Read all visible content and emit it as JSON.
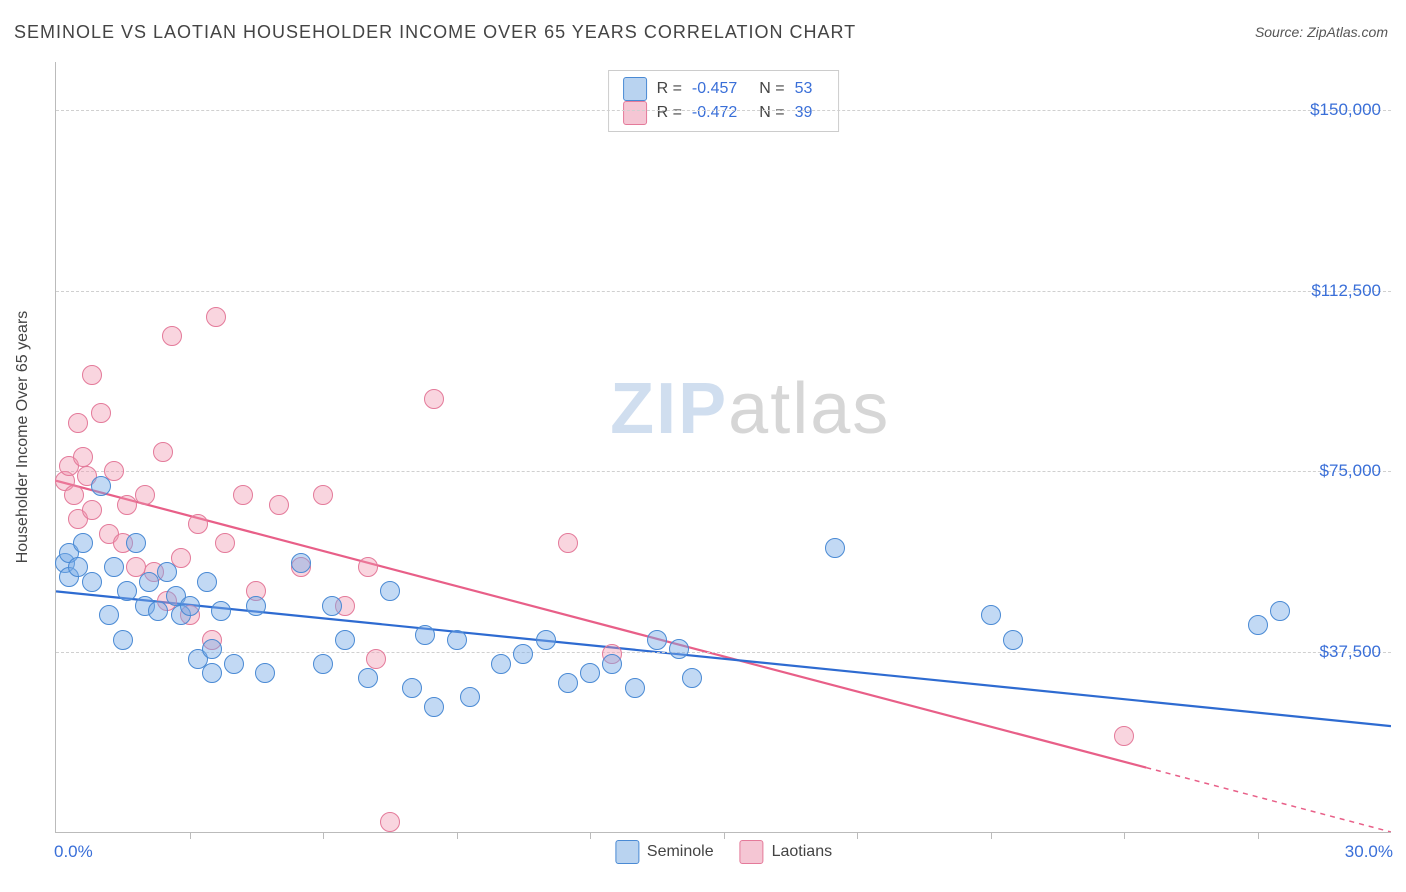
{
  "title": "SEMINOLE VS LAOTIAN HOUSEHOLDER INCOME OVER 65 YEARS CORRELATION CHART",
  "source_prefix": "Source: ",
  "source_name": "ZipAtlas.com",
  "ylabel": "Householder Income Over 65 years",
  "watermark_a": "ZIP",
  "watermark_b": "atlas",
  "chart": {
    "type": "scatter",
    "xlim": [
      0,
      30
    ],
    "ylim": [
      0,
      160000
    ],
    "x_left_label": "0.0%",
    "x_right_label": "30.0%",
    "x_tick_step": 3,
    "y_ticks": [
      {
        "v": 37500,
        "label": "$37,500"
      },
      {
        "v": 75000,
        "label": "$75,000"
      },
      {
        "v": 112500,
        "label": "$112,500"
      },
      {
        "v": 150000,
        "label": "$150,000"
      }
    ],
    "background_color": "#ffffff",
    "grid_color": "#d0d0d0",
    "axis_color": "#bbbbbb",
    "tick_label_color": "#3a6fd8",
    "marker_radius": 9,
    "series_a": {
      "name": "Seminole",
      "fill": "rgba(120,170,230,0.45)",
      "stroke": "#4a8ad4",
      "swatch_fill": "#b9d3f0",
      "swatch_border": "#4a8ad4",
      "r": "-0.457",
      "n": "53",
      "trend": {
        "y_at_x0": 50000,
        "y_at_x30": 22000,
        "color": "#2e6bd1",
        "width": 2.2,
        "extend_max_x": 30
      },
      "points": [
        [
          0.2,
          56000
        ],
        [
          0.3,
          58000
        ],
        [
          0.3,
          53000
        ],
        [
          0.5,
          55000
        ],
        [
          0.6,
          60000
        ],
        [
          0.8,
          52000
        ],
        [
          1.0,
          72000
        ],
        [
          1.2,
          45000
        ],
        [
          1.3,
          55000
        ],
        [
          1.5,
          40000
        ],
        [
          1.6,
          50000
        ],
        [
          1.8,
          60000
        ],
        [
          2.0,
          47000
        ],
        [
          2.1,
          52000
        ],
        [
          2.3,
          46000
        ],
        [
          2.5,
          54000
        ],
        [
          2.7,
          49000
        ],
        [
          2.8,
          45000
        ],
        [
          3.0,
          47000
        ],
        [
          3.2,
          36000
        ],
        [
          3.4,
          52000
        ],
        [
          3.5,
          38000
        ],
        [
          3.5,
          33000
        ],
        [
          3.7,
          46000
        ],
        [
          4.0,
          35000
        ],
        [
          4.5,
          47000
        ],
        [
          4.7,
          33000
        ],
        [
          5.5,
          56000
        ],
        [
          6.0,
          35000
        ],
        [
          6.2,
          47000
        ],
        [
          6.5,
          40000
        ],
        [
          7.0,
          32000
        ],
        [
          7.5,
          50000
        ],
        [
          8.0,
          30000
        ],
        [
          8.3,
          41000
        ],
        [
          8.5,
          26000
        ],
        [
          9.0,
          40000
        ],
        [
          9.3,
          28000
        ],
        [
          10.0,
          35000
        ],
        [
          10.5,
          37000
        ],
        [
          11.0,
          40000
        ],
        [
          11.5,
          31000
        ],
        [
          12.0,
          33000
        ],
        [
          12.5,
          35000
        ],
        [
          13.0,
          30000
        ],
        [
          13.5,
          40000
        ],
        [
          14.0,
          38000
        ],
        [
          14.3,
          32000
        ],
        [
          17.5,
          59000
        ],
        [
          21.0,
          45000
        ],
        [
          21.5,
          40000
        ],
        [
          27.0,
          43000
        ],
        [
          27.5,
          46000
        ]
      ]
    },
    "series_b": {
      "name": "Laotians",
      "fill": "rgba(240,150,175,0.40)",
      "stroke": "#e47a9a",
      "swatch_fill": "#f5c6d4",
      "swatch_border": "#e47a9a",
      "r": "-0.472",
      "n": "39",
      "trend": {
        "y_at_x0": 73000,
        "y_at_x30": 0,
        "color": "#e85f88",
        "width": 2.2,
        "extend_max_x": 24.5
      },
      "points": [
        [
          0.2,
          73000
        ],
        [
          0.3,
          76000
        ],
        [
          0.4,
          70000
        ],
        [
          0.5,
          85000
        ],
        [
          0.5,
          65000
        ],
        [
          0.6,
          78000
        ],
        [
          0.7,
          74000
        ],
        [
          0.8,
          67000
        ],
        [
          0.8,
          95000
        ],
        [
          1.0,
          87000
        ],
        [
          1.2,
          62000
        ],
        [
          1.3,
          75000
        ],
        [
          1.5,
          60000
        ],
        [
          1.6,
          68000
        ],
        [
          1.8,
          55000
        ],
        [
          2.0,
          70000
        ],
        [
          2.2,
          54000
        ],
        [
          2.4,
          79000
        ],
        [
          2.5,
          48000
        ],
        [
          2.6,
          103000
        ],
        [
          2.8,
          57000
        ],
        [
          3.0,
          45000
        ],
        [
          3.2,
          64000
        ],
        [
          3.5,
          40000
        ],
        [
          3.6,
          107000
        ],
        [
          3.8,
          60000
        ],
        [
          4.2,
          70000
        ],
        [
          4.5,
          50000
        ],
        [
          5.0,
          68000
        ],
        [
          5.5,
          55000
        ],
        [
          6.0,
          70000
        ],
        [
          6.5,
          47000
        ],
        [
          7.0,
          55000
        ],
        [
          7.2,
          36000
        ],
        [
          7.5,
          2000
        ],
        [
          8.5,
          90000
        ],
        [
          11.5,
          60000
        ],
        [
          12.5,
          37000
        ],
        [
          24.0,
          20000
        ]
      ]
    }
  },
  "legend_top": {
    "r_label": "R =",
    "n_label": "N ="
  }
}
